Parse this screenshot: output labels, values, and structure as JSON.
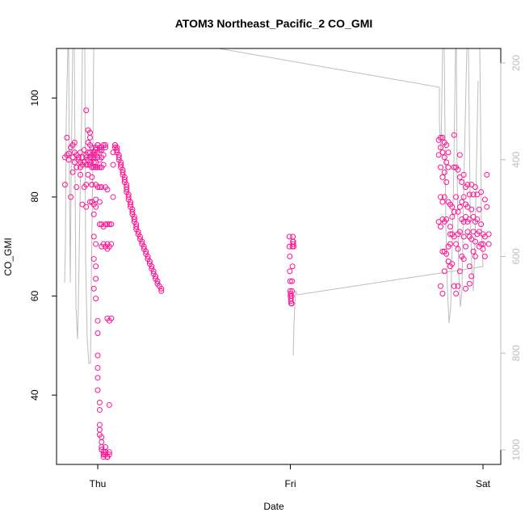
{
  "chart_data": {
    "type": "scatter",
    "title": "ATOM3 Northeast_Pacific_2 CO_GMI",
    "xlabel": "Date",
    "ylabel": "CO_GMI",
    "x_ticks": [
      "Thu",
      "Fri",
      "Sat"
    ],
    "x_tick_days": [
      0,
      1,
      2
    ],
    "xlim_days": [
      -0.2,
      2.1
    ],
    "ylim": [
      26,
      110
    ],
    "y_ticks": [
      40,
      60,
      80,
      100
    ],
    "y2_ticks": [
      200,
      400,
      600,
      800,
      1000
    ],
    "y2lim": [
      1030,
      170
    ],
    "colors": {
      "points": "#ff1493",
      "pressure_line": "#bdbdbd",
      "axis": "#000000"
    },
    "series": [
      {
        "values_x_days": [
          -0.17,
          -0.17,
          -0.16,
          -0.16,
          -0.15,
          -0.15,
          -0.14,
          -0.14,
          -0.13,
          -0.13,
          -0.13,
          -0.12,
          -0.12,
          -0.12,
          -0.11,
          -0.11,
          -0.11,
          -0.1,
          -0.1,
          -0.1,
          -0.09,
          -0.09,
          -0.09,
          -0.09,
          -0.08,
          -0.08,
          -0.08,
          -0.07,
          -0.07,
          -0.07,
          -0.06,
          -0.06,
          -0.06,
          -0.06,
          -0.06,
          -0.05,
          -0.05,
          -0.05,
          -0.05,
          -0.04,
          -0.04,
          -0.04,
          -0.04,
          -0.04,
          -0.03,
          -0.03,
          -0.03,
          -0.03,
          -0.03,
          -0.02,
          -0.02,
          -0.02,
          -0.02,
          -0.02,
          -0.01,
          -0.01,
          -0.01,
          -0.01,
          -0.01,
          -0.01,
          -0.01,
          -0.01,
          0.0,
          0.0,
          0.0,
          0.0,
          0.0,
          0.0,
          0.01,
          0.01,
          0.01,
          0.01,
          0.01,
          0.01,
          0.01,
          0.02,
          0.02,
          0.02,
          0.02,
          0.02,
          0.02,
          0.02,
          0.03,
          0.03,
          0.03,
          0.03,
          0.03,
          0.04,
          0.04,
          0.04,
          0.04,
          0.04,
          0.05,
          0.05,
          0.05,
          0.05,
          0.05,
          0.06,
          0.06,
          0.06,
          -0.06,
          -0.05,
          -0.05,
          -0.04,
          -0.04,
          -0.04,
          -0.03,
          -0.03,
          -0.03,
          -0.03,
          -0.03,
          -0.02,
          -0.02,
          -0.02,
          -0.02,
          -0.02,
          -0.01,
          -0.01,
          -0.01,
          -0.01,
          0.0,
          0.0,
          0.0,
          0.0,
          0.0,
          0.0,
          0.01,
          0.01,
          0.01,
          0.01,
          0.01,
          0.02,
          0.02,
          0.02,
          0.02,
          0.03,
          0.03,
          0.03,
          0.03,
          0.04,
          0.04,
          0.04,
          0.04,
          0.05,
          0.05,
          0.05,
          0.05,
          0.06,
          0.06,
          0.06,
          0.07,
          0.07,
          0.07,
          0.08,
          0.08,
          0.08,
          0.09,
          0.09,
          0.09,
          0.1,
          0.1,
          0.1,
          0.11,
          0.11,
          0.11,
          0.12,
          0.12,
          0.12,
          0.13,
          0.13,
          0.13,
          0.14,
          0.14,
          0.14,
          0.15,
          0.15,
          0.15,
          0.15,
          0.16,
          0.16,
          0.16,
          0.17,
          0.17,
          0.17,
          0.18,
          0.18,
          0.18,
          0.19,
          0.19,
          0.19,
          0.2,
          0.2,
          0.2,
          0.21,
          0.21,
          0.22,
          0.22,
          0.23,
          0.23,
          0.24,
          0.24,
          0.25,
          0.25,
          0.26,
          0.26,
          0.27,
          0.27,
          0.28,
          0.28,
          0.29,
          0.29,
          0.3,
          0.3,
          0.31,
          0.31,
          0.32,
          0.33,
          0.33
        ],
        "values_y": [
          88.0,
          82.5,
          88.5,
          92.0,
          88.8,
          87.5,
          90.0,
          80.0,
          88.0,
          90.5,
          85.0,
          89.0,
          91.0,
          87.0,
          82.0,
          86.0,
          88.5,
          88.0,
          87.5,
          88.0,
          89.0,
          87.0,
          86.0,
          84.5,
          88.0,
          86.5,
          78.5,
          89.5,
          87.0,
          82.0,
          78.0,
          88.5,
          86.5,
          82.5,
          88.0,
          89.0,
          87.5,
          86.5,
          84.5,
          88.0,
          87.0,
          86.5,
          79.0,
          89.0,
          90.0,
          88.0,
          86.0,
          82.5,
          79.0,
          89.0,
          88.5,
          88.0,
          87.0,
          86.0,
          90.0,
          89.5,
          88.5,
          87.0,
          86.0,
          82.5,
          79.5,
          78.0,
          90.5,
          90.5,
          89.0,
          88.0,
          86.0,
          82.0,
          90.0,
          89.5,
          87.5,
          86.0,
          82.0,
          79.0,
          74.5,
          90.0,
          89.5,
          88.0,
          86.0,
          82.0,
          74.5,
          70.0,
          90.5,
          88.5,
          86.5,
          74.0,
          70.5,
          90.5,
          90.0,
          82.0,
          74.5,
          70.0,
          81.5,
          74.5,
          70.5,
          69.5,
          55.5,
          74.5,
          70.0,
          55.0,
          97.5,
          93.5,
          91.0,
          93.0,
          92.0,
          90.5,
          88.5,
          86.0,
          84.0,
          82.5,
          79.0,
          78.5,
          76.5,
          72.0,
          67.5,
          61.5,
          70.5,
          66.0,
          63.5,
          59.5,
          55.0,
          52.5,
          48.0,
          45.5,
          43.5,
          41.0,
          38.5,
          37.0,
          34.0,
          33.0,
          32.0,
          31.5,
          30.5,
          29.5,
          29.0,
          28.5,
          28.0,
          28.0,
          27.5,
          29.5,
          28.5,
          28.5,
          28.0,
          27.5,
          27.5,
          27.5,
          27.5,
          28.0,
          28.5,
          38.0,
          55.5,
          70.5,
          74.5,
          80.0,
          86.5,
          89.0,
          90.5,
          90.5,
          90.0,
          90.0,
          89.5,
          89.0,
          88.5,
          88.0,
          87.5,
          87.0,
          86.5,
          86.0,
          85.5,
          85.0,
          84.5,
          84.0,
          83.5,
          83.0,
          82.5,
          82.0,
          81.5,
          81.0,
          80.5,
          80.0,
          79.5,
          79.0,
          78.5,
          78.0,
          77.5,
          77.0,
          76.5,
          76.0,
          75.5,
          75.0,
          74.5,
          74.0,
          73.5,
          73.0,
          72.5,
          72.0,
          71.5,
          71.0,
          70.5,
          70.0,
          69.5,
          69.0,
          68.5,
          68.0,
          67.5,
          67.0,
          66.5,
          66.0,
          65.5,
          65.0,
          64.5,
          64.0,
          63.5,
          63.0,
          62.5,
          62.0,
          61.5,
          61.0,
          60.5,
          60.0,
          59.5,
          59.0,
          58.5,
          58.0
        ]
      },
      {
        "values_x_days": [
          0.995,
          0.995,
          0.997,
          0.997,
          0.999,
          0.999,
          1.001,
          1.001,
          1.003,
          1.003,
          1.005,
          1.005,
          1.007,
          1.007,
          1.009,
          1.009,
          1.011,
          1.011,
          1.013,
          1.013,
          1.015,
          1.015,
          1.017
        ],
        "values_y": [
          72.0,
          70.0,
          68.0,
          65.0,
          63.0,
          61.0,
          60.5,
          60.0,
          59.5,
          59.0,
          58.5,
          58.5,
          58.5,
          60.0,
          61.0,
          63.0,
          66.0,
          70.0,
          71.0,
          72.0,
          71.0,
          70.5,
          70.0
        ]
      },
      {
        "values_x_days": [
          1.77,
          1.77,
          1.77,
          1.78,
          1.78,
          1.78,
          1.78,
          1.78,
          1.78,
          1.79,
          1.79,
          1.79,
          1.79,
          1.79,
          1.79,
          1.79,
          1.8,
          1.8,
          1.8,
          1.8,
          1.8,
          1.8,
          1.8,
          1.81,
          1.81,
          1.81,
          1.81,
          1.81,
          1.82,
          1.82,
          1.82,
          1.82,
          1.82,
          1.83,
          1.83,
          1.83,
          1.83,
          1.83,
          1.84,
          1.84,
          1.84,
          1.84,
          1.85,
          1.85,
          1.85,
          1.85,
          1.85,
          1.86,
          1.86,
          1.86,
          1.86,
          1.87,
          1.87,
          1.87,
          1.87,
          1.87,
          1.88,
          1.88,
          1.88,
          1.88,
          1.88,
          1.89,
          1.89,
          1.89,
          1.89,
          1.9,
          1.9,
          1.9,
          1.9,
          1.9,
          1.91,
          1.91,
          1.91,
          1.91,
          1.91,
          1.92,
          1.92,
          1.92,
          1.92,
          1.93,
          1.93,
          1.93,
          1.93,
          1.93,
          1.94,
          1.94,
          1.94,
          1.94,
          1.95,
          1.95,
          1.95,
          1.95,
          1.96,
          1.96,
          1.96,
          1.96,
          1.97,
          1.97,
          1.97,
          1.98,
          1.98,
          1.98,
          1.99,
          1.99,
          1.99,
          2.0,
          2.0,
          2.0,
          2.01,
          2.01,
          2.01,
          2.02,
          2.02,
          2.03,
          2.03
        ],
        "values_y": [
          91.5,
          88.5,
          75.0,
          92.0,
          90.0,
          86.0,
          80.0,
          74.0,
          62.0,
          92.0,
          89.0,
          84.0,
          79.0,
          75.5,
          69.0,
          60.5,
          91.0,
          88.0,
          85.0,
          80.0,
          75.0,
          69.0,
          65.0,
          90.5,
          87.0,
          83.0,
          75.5,
          68.5,
          89.0,
          86.0,
          79.0,
          70.0,
          67.0,
          78.5,
          74.0,
          72.5,
          70.5,
          66.0,
          78.0,
          76.0,
          72.5,
          66.5,
          92.5,
          86.0,
          77.0,
          72.0,
          62.0,
          86.0,
          80.0,
          70.5,
          60.5,
          85.5,
          77.0,
          72.5,
          69.5,
          62.0,
          88.5,
          84.0,
          78.0,
          73.0,
          65.0,
          83.0,
          79.0,
          75.5,
          68.0,
          84.5,
          80.0,
          75.0,
          72.0,
          67.5,
          82.0,
          78.5,
          76.0,
          70.0,
          61.5,
          82.5,
          78.0,
          75.0,
          73.0,
          80.5,
          75.5,
          72.0,
          66.0,
          62.5,
          82.5,
          77.5,
          71.5,
          64.0,
          80.5,
          76.0,
          73.0,
          69.0,
          82.0,
          75.0,
          71.0,
          68.0,
          80.5,
          75.5,
          72.5,
          77.5,
          73.0,
          70.0,
          81.0,
          74.5,
          70.5,
          72.5,
          70.5,
          69.5,
          79.5,
          72.0,
          68.0,
          84.5,
          78.0,
          72.5,
          70.5
        ]
      }
    ]
  }
}
